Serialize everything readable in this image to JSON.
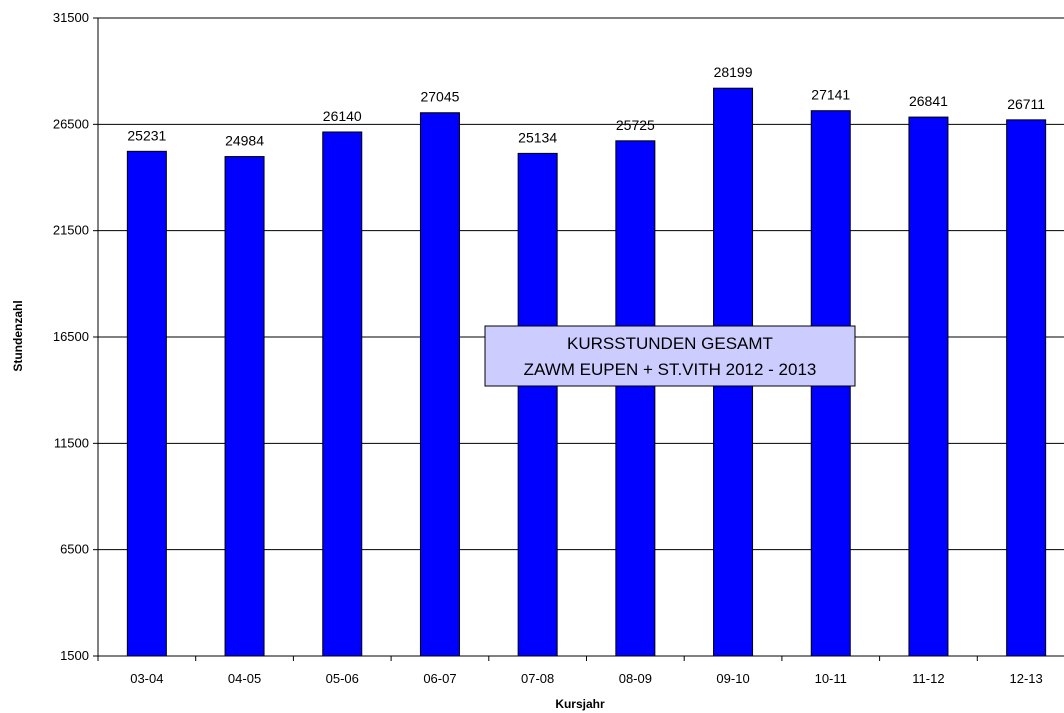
{
  "chart_data": {
    "type": "bar",
    "title_lines": [
      "KURSSTUNDEN GESAMT",
      "ZAWM EUPEN + ST.VITH 2012 - 2013"
    ],
    "xlabel": "Kursjahr",
    "ylabel": "Stundenzahl",
    "categories": [
      "03-04",
      "04-05",
      "05-06",
      "06-07",
      "07-08",
      "08-09",
      "09-10",
      "10-11",
      "11-12",
      "12-13"
    ],
    "series": [
      {
        "values": [
          25231,
          24984,
          26140,
          27045,
          25134,
          25725,
          28199,
          27141,
          26841,
          26711
        ],
        "color": "#0000ff"
      }
    ],
    "ylim": [
      1500,
      31500
    ],
    "yticks": [
      1500,
      6500,
      11500,
      16500,
      21500,
      26500,
      31500
    ],
    "grid": true,
    "bar_border_color": "#000000",
    "title_box_fill": "#ccccff"
  }
}
